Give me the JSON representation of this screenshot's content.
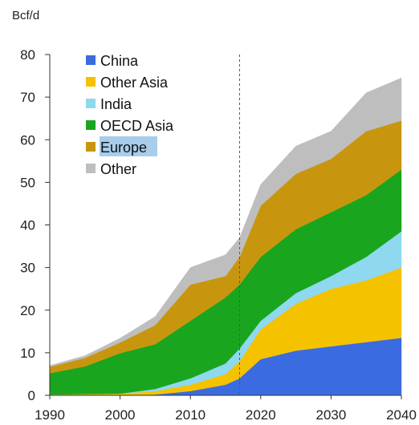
{
  "chart_data": {
    "type": "area",
    "stacked": true,
    "unit_label": "Bcf/d",
    "title": "",
    "xlabel": "",
    "ylabel": "",
    "xlim": [
      1990,
      2040
    ],
    "ylim": [
      0,
      80
    ],
    "x_ticks": [
      1990,
      2000,
      2010,
      2020,
      2030,
      2040
    ],
    "y_ticks": [
      0,
      10,
      20,
      30,
      40,
      50,
      60,
      70,
      80
    ],
    "reference_line_x": 2017,
    "grid": false,
    "legend_position": "top-left",
    "x": [
      1990,
      1995,
      2000,
      2005,
      2010,
      2015,
      2017,
      2020,
      2025,
      2030,
      2035,
      2040
    ],
    "series": [
      {
        "name": "China",
        "color": "#3B6BE0",
        "values": [
          0,
          0,
          0,
          0.2,
          1.0,
          2.5,
          4.0,
          8.5,
          10.5,
          11.5,
          12.5,
          13.5
        ]
      },
      {
        "name": "Other Asia",
        "color": "#F5C200",
        "values": [
          0.2,
          0.3,
          0.4,
          0.8,
          1.5,
          2.5,
          4.0,
          7.0,
          11.0,
          13.5,
          14.5,
          16.5
        ]
      },
      {
        "name": "India",
        "color": "#8ED8F0",
        "values": [
          0,
          0,
          0,
          0.5,
          1.5,
          2.5,
          3.0,
          2.0,
          2.5,
          3.0,
          5.5,
          8.5
        ]
      },
      {
        "name": "OECD Asia",
        "color": "#1AA51F",
        "values": [
          5.0,
          6.5,
          9.5,
          10.5,
          13.5,
          15.5,
          15.0,
          15.0,
          15.0,
          15.0,
          14.5,
          14.5
        ]
      },
      {
        "name": "Europe",
        "color": "#C8960E",
        "values": [
          1.5,
          2.0,
          2.5,
          4.5,
          8.5,
          5.0,
          6.5,
          12.0,
          13.0,
          12.5,
          15.0,
          11.5
        ]
      },
      {
        "name": "Other",
        "color": "#BEBEBE",
        "values": [
          0.3,
          0.5,
          1.0,
          2.0,
          4.0,
          5.0,
          4.5,
          5.0,
          6.5,
          6.5,
          9.0,
          10.0
        ]
      }
    ]
  },
  "legend": {
    "selected_label": "Europe",
    "highlight_color": "#A7CDEB"
  }
}
